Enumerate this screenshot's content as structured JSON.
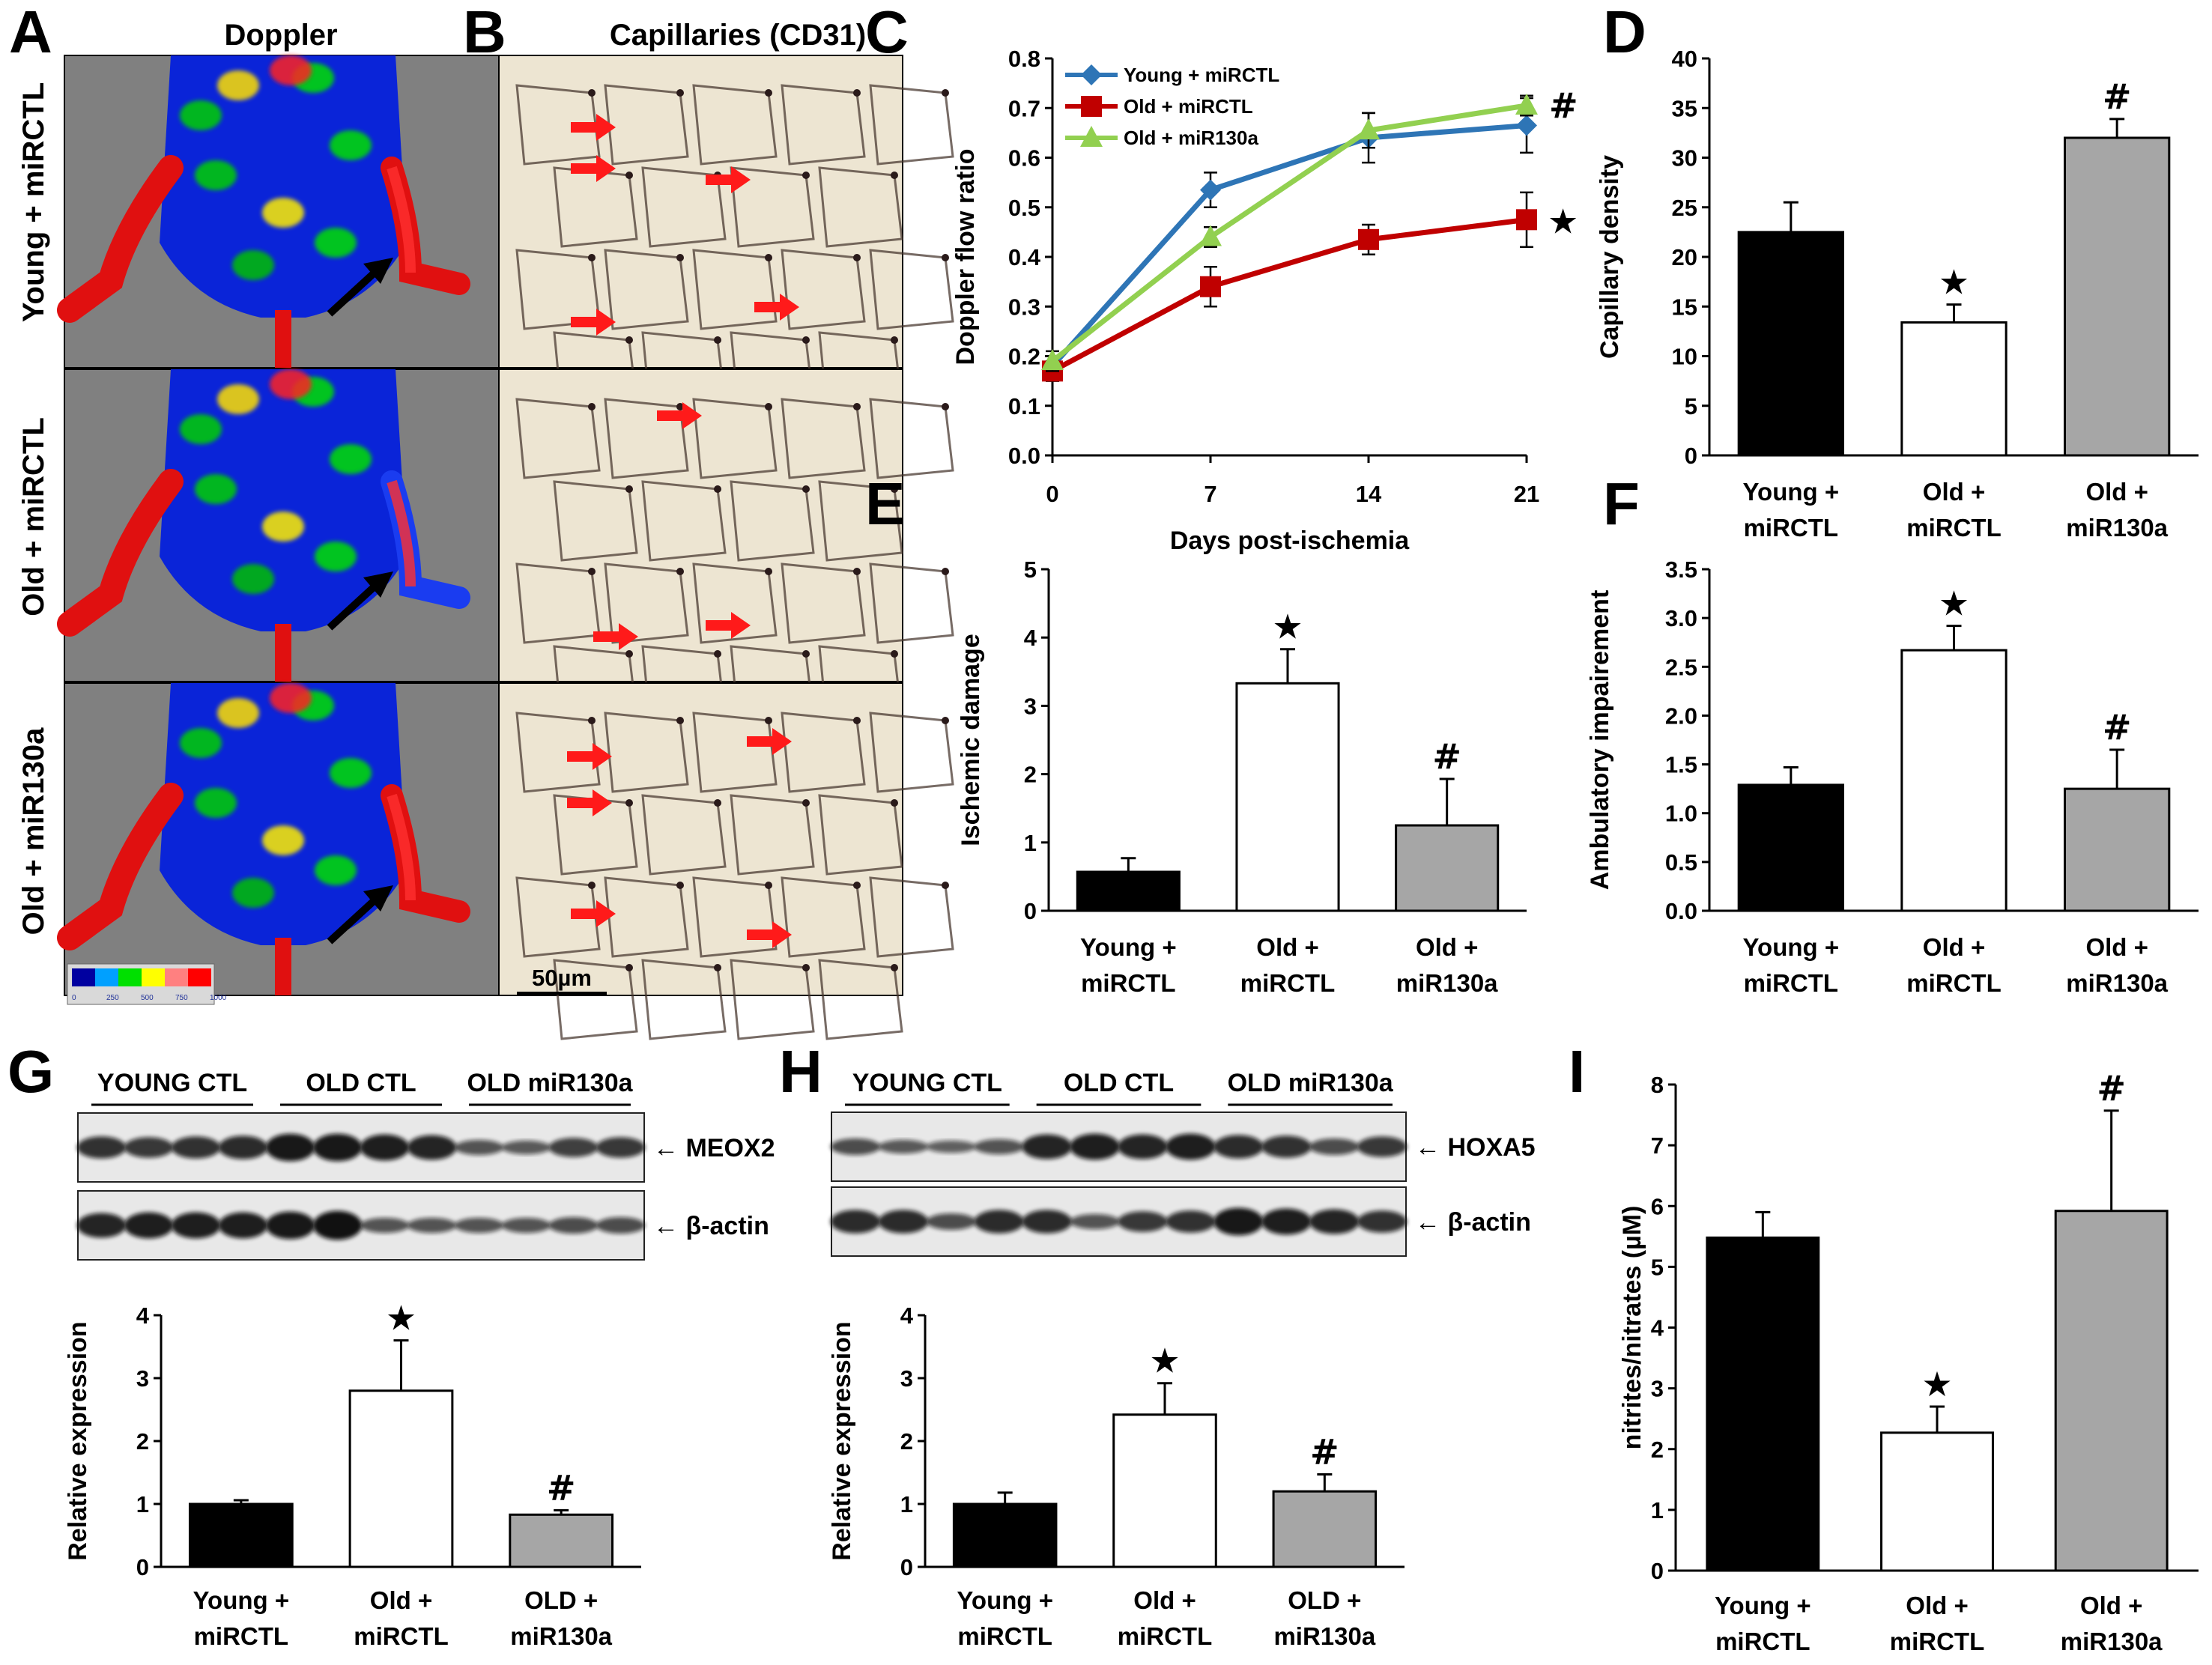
{
  "colors": {
    "black_bar": "#000000",
    "white_bar": "#ffffff",
    "gray_bar": "#a6a6a6",
    "young_line": "#2e75b6",
    "old_line": "#c00000",
    "mir_line": "#92d050",
    "arrow_red": "#ff1a1a",
    "doppler_bg": "#808080",
    "histo_bg": "#ede5d2"
  },
  "panel_A": {
    "letter": "A",
    "title": "Doppler",
    "rows": [
      "Young + miRCTL",
      "Old + miRCTL",
      "Old + miR130a"
    ],
    "colorbar_ticks": [
      "0",
      "250",
      "500",
      "750",
      "1000"
    ],
    "icons": [
      "arrow-icon"
    ]
  },
  "panel_B": {
    "letter": "B",
    "title": "Capillaries (CD31)",
    "scale_bar": "50µm",
    "icons": [
      "red-arrow-icon"
    ]
  },
  "panel_G": {
    "letter": "G",
    "groups": [
      "YOUNG CTL",
      "OLD CTL",
      "OLD miR130a"
    ],
    "band1": "← MEOX2",
    "band2": "← β-actin"
  },
  "panel_H": {
    "letter": "H",
    "groups": [
      "YOUNG CTL",
      "OLD CTL",
      "OLD miR130a"
    ],
    "band1": "← HOXA5",
    "band2": "← β-actin"
  },
  "chart_data": [
    {
      "id": "C",
      "type": "line",
      "letter": "C",
      "xlabel": "Days post-ischemia",
      "ylabel": "Doppler flow ratio",
      "x": [
        0,
        7,
        14,
        21
      ],
      "ylim": [
        0,
        0.8
      ],
      "xticks": [
        "0",
        "7",
        "14",
        "21"
      ],
      "yticks": [
        "0.0",
        "0.1",
        "0.2",
        "0.3",
        "0.4",
        "0.5",
        "0.6",
        "0.7",
        "0.8"
      ],
      "legend_position": "top-left",
      "series": [
        {
          "name": "Young + miRCTL",
          "values": [
            0.18,
            0.535,
            0.64,
            0.665
          ],
          "errors": [
            0.02,
            0.035,
            0.05,
            0.055
          ],
          "marker": "diamond"
        },
        {
          "name": "Old + miRCTL",
          "values": [
            0.17,
            0.34,
            0.435,
            0.475
          ],
          "errors": [
            0.02,
            0.04,
            0.03,
            0.055
          ],
          "marker": "square"
        },
        {
          "name": "Old + miR130a",
          "values": [
            0.19,
            0.44,
            0.655,
            0.705
          ],
          "errors": [
            0.02,
            0.02,
            0.035,
            0.02
          ],
          "marker": "triangle"
        }
      ],
      "annotations": [
        {
          "x": 21,
          "y": 0.705,
          "text": "#"
        },
        {
          "x": 21,
          "y": 0.475,
          "text": "★"
        }
      ]
    },
    {
      "id": "D",
      "type": "bar",
      "letter": "D",
      "ylabel": "Capillary density",
      "ylim": [
        0,
        40
      ],
      "yticks": [
        "0",
        "5",
        "10",
        "15",
        "20",
        "25",
        "30",
        "35",
        "40"
      ],
      "categories": [
        "Young +\nmiRCTL",
        "Old +\nmiRCTL",
        "Old +\nmiR130a"
      ],
      "values": [
        22.5,
        13.4,
        32.0
      ],
      "errors": [
        3.0,
        1.8,
        1.9
      ],
      "marks": [
        "",
        "★",
        "#"
      ]
    },
    {
      "id": "E",
      "type": "bar",
      "letter": "E",
      "ylabel": "Ischemic damage",
      "ylim": [
        0,
        5
      ],
      "yticks": [
        "0",
        "1",
        "2",
        "3",
        "4",
        "5"
      ],
      "categories": [
        "Young +\nmiRCTL",
        "Old +\nmiRCTL",
        "Old +\nmiR130a"
      ],
      "values": [
        0.57,
        3.33,
        1.25
      ],
      "errors": [
        0.2,
        0.5,
        0.68
      ],
      "marks": [
        "",
        "★",
        "#"
      ]
    },
    {
      "id": "F",
      "type": "bar",
      "letter": "F",
      "ylabel": "Ambulatory impairement",
      "ylim": [
        0,
        3.5
      ],
      "yticks": [
        "0.0",
        "0.5",
        "1.0",
        "1.5",
        "2.0",
        "2.5",
        "3.0",
        "3.5"
      ],
      "categories": [
        "Young +\nmiRCTL",
        "Old +\nmiRCTL",
        "Old +\nmiR130a"
      ],
      "values": [
        1.29,
        2.67,
        1.25
      ],
      "errors": [
        0.18,
        0.25,
        0.4
      ],
      "marks": [
        "",
        "★",
        "#"
      ]
    },
    {
      "id": "G",
      "type": "bar",
      "ylabel": "Relative expression",
      "ylim": [
        0,
        4
      ],
      "yticks": [
        "0",
        "1",
        "2",
        "3",
        "4"
      ],
      "categories": [
        "Young +\nmiRCTL",
        "Old +\nmiRCTL",
        "OLD +\nmiR130a"
      ],
      "values": [
        1.0,
        2.8,
        0.83
      ],
      "errors": [
        0.06,
        0.8,
        0.07
      ],
      "marks": [
        "",
        "★",
        "#"
      ]
    },
    {
      "id": "H",
      "type": "bar",
      "ylabel": "Relative expression",
      "ylim": [
        0,
        4
      ],
      "yticks": [
        "0",
        "1",
        "2",
        "3",
        "4"
      ],
      "categories": [
        "Young +\nmiRCTL",
        "Old +\nmiRCTL",
        "OLD +\nmiR130a"
      ],
      "values": [
        1.0,
        2.42,
        1.2
      ],
      "errors": [
        0.18,
        0.5,
        0.27
      ],
      "marks": [
        "",
        "★",
        "#"
      ]
    },
    {
      "id": "I",
      "type": "bar",
      "letter": "I",
      "ylabel": "nitrites/nitrates (µM)",
      "ylim": [
        0,
        8
      ],
      "yticks": [
        "0",
        "1",
        "2",
        "3",
        "4",
        "5",
        "6",
        "7",
        "8"
      ],
      "categories": [
        "Young +\nmiRCTL",
        "Old +\nmiRCTL",
        "Old +\nmiR130a"
      ],
      "values": [
        5.48,
        2.27,
        5.92
      ],
      "errors": [
        0.42,
        0.43,
        1.65
      ],
      "marks": [
        "",
        "★",
        "#"
      ]
    }
  ]
}
